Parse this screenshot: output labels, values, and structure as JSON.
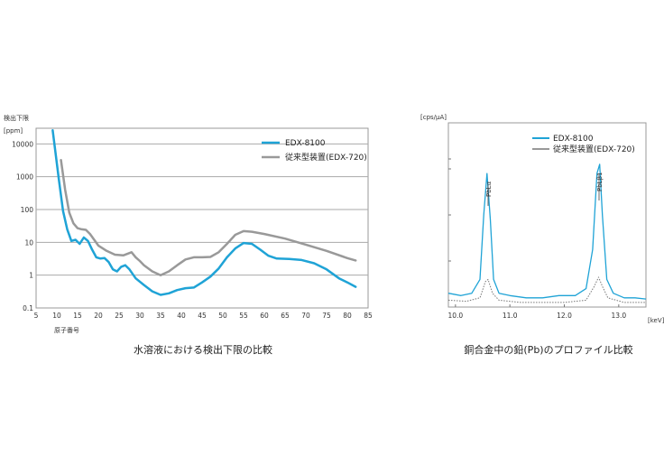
{
  "chart_data": [
    {
      "type": "line",
      "title": "",
      "caption": "水溶液における検出下限の比較",
      "ylabel_line1": "検出下限",
      "ylabel_line2": "[ppm]",
      "xlabel": "原子番号",
      "yscale": "log",
      "xlim": [
        5,
        85
      ],
      "ylim": [
        0.1,
        30000
      ],
      "grid": true,
      "legend_position": "top-right",
      "xticks": [
        "5",
        "10",
        "15",
        "20",
        "25",
        "30",
        "35",
        "40",
        "45",
        "50",
        "55",
        "60",
        "65",
        "70",
        "75",
        "80",
        "85"
      ],
      "yticks": [
        "10000",
        "1000",
        "100",
        "10",
        "1",
        "0.1"
      ],
      "series": [
        {
          "name": "EDX-8100",
          "color": "#1fa3d6",
          "points": [
            [
              9,
              26000
            ],
            [
              10.5,
              800
            ],
            [
              11.5,
              90
            ],
            [
              12.5,
              25
            ],
            [
              13.5,
              11
            ],
            [
              14.5,
              12
            ],
            [
              15.5,
              9
            ],
            [
              16.5,
              14
            ],
            [
              17.5,
              11
            ],
            [
              18.5,
              6
            ],
            [
              19.5,
              3.5
            ],
            [
              20.5,
              3.2
            ],
            [
              21.5,
              3.3
            ],
            [
              22.5,
              2.5
            ],
            [
              23.5,
              1.5
            ],
            [
              24.5,
              1.3
            ],
            [
              25.5,
              1.8
            ],
            [
              26.5,
              2
            ],
            [
              27.5,
              1.5
            ],
            [
              29,
              0.8
            ],
            [
              31,
              0.5
            ],
            [
              33,
              0.32
            ],
            [
              35,
              0.25
            ],
            [
              37,
              0.28
            ],
            [
              39,
              0.35
            ],
            [
              41,
              0.4
            ],
            [
              43,
              0.42
            ],
            [
              45,
              0.6
            ],
            [
              47,
              0.9
            ],
            [
              49,
              1.6
            ],
            [
              51,
              3.5
            ],
            [
              53,
              6.5
            ],
            [
              55,
              9.5
            ],
            [
              57,
              9
            ],
            [
              59,
              6
            ],
            [
              61,
              3.9
            ],
            [
              63,
              3.2
            ],
            [
              66,
              3.1
            ],
            [
              69,
              2.9
            ],
            [
              72,
              2.3
            ],
            [
              75,
              1.5
            ],
            [
              78,
              0.8
            ],
            [
              80,
              0.6
            ],
            [
              82,
              0.44
            ]
          ]
        },
        {
          "name": "従来型装置(EDX-720)",
          "color": "#999999",
          "points": [
            [
              11,
              3200
            ],
            [
              12,
              400
            ],
            [
              13,
              80
            ],
            [
              14,
              38
            ],
            [
              15,
              27
            ],
            [
              16,
              25
            ],
            [
              17,
              24
            ],
            [
              18,
              18
            ],
            [
              19,
              12
            ],
            [
              20,
              8
            ],
            [
              22,
              5.5
            ],
            [
              24,
              4.2
            ],
            [
              26,
              4
            ],
            [
              28,
              5
            ],
            [
              29,
              3.5
            ],
            [
              30,
              2.7
            ],
            [
              31,
              2
            ],
            [
              33,
              1.3
            ],
            [
              35,
              1
            ],
            [
              37,
              1.3
            ],
            [
              39,
              2
            ],
            [
              41,
              3
            ],
            [
              43,
              3.5
            ],
            [
              45,
              3.5
            ],
            [
              47,
              3.6
            ],
            [
              49,
              5
            ],
            [
              51,
              9
            ],
            [
              53,
              17
            ],
            [
              55,
              22
            ],
            [
              57,
              21
            ],
            [
              60,
              18
            ],
            [
              65,
              13
            ],
            [
              70,
              8.5
            ],
            [
              75,
              5.5
            ],
            [
              80,
              3.3
            ],
            [
              82,
              2.8
            ]
          ]
        }
      ]
    },
    {
      "type": "line",
      "title": "",
      "caption": "銅合金中の鉛(Pb)のプロファイル比較",
      "ylabel": "[cps/μA]",
      "xlabel": "[keV]",
      "xlim": [
        9.87,
        13.5
      ],
      "xticks": [
        "10.0",
        "11.0",
        "12.0",
        "13.0"
      ],
      "y_ticks_labeled": false,
      "grid": false,
      "legend_position": "top-right",
      "annotations": [
        "PbLα",
        "PbLβ1"
      ],
      "series": [
        {
          "name": "EDX-8100",
          "color": "#1fa3d6",
          "points": [
            [
              9.87,
              0.06
            ],
            [
              10.1,
              0.05
            ],
            [
              10.3,
              0.06
            ],
            [
              10.45,
              0.12
            ],
            [
              10.52,
              0.4
            ],
            [
              10.58,
              0.58
            ],
            [
              10.64,
              0.38
            ],
            [
              10.7,
              0.12
            ],
            [
              10.8,
              0.06
            ],
            [
              11.0,
              0.05
            ],
            [
              11.3,
              0.04
            ],
            [
              11.6,
              0.04
            ],
            [
              11.9,
              0.05
            ],
            [
              12.2,
              0.05
            ],
            [
              12.4,
              0.08
            ],
            [
              12.52,
              0.25
            ],
            [
              12.6,
              0.58
            ],
            [
              12.65,
              0.62
            ],
            [
              12.7,
              0.4
            ],
            [
              12.78,
              0.12
            ],
            [
              12.9,
              0.06
            ],
            [
              13.1,
              0.04
            ],
            [
              13.3,
              0.04
            ],
            [
              13.5,
              0.035
            ]
          ]
        },
        {
          "name": "従来型装置(EDX-720)",
          "color": "#777777",
          "points": [
            [
              9.87,
              0.03
            ],
            [
              10.2,
              0.025
            ],
            [
              10.45,
              0.04
            ],
            [
              10.55,
              0.11
            ],
            [
              10.6,
              0.12
            ],
            [
              10.68,
              0.06
            ],
            [
              10.8,
              0.03
            ],
            [
              11.2,
              0.02
            ],
            [
              11.6,
              0.02
            ],
            [
              12.0,
              0.02
            ],
            [
              12.4,
              0.03
            ],
            [
              12.55,
              0.09
            ],
            [
              12.63,
              0.13
            ],
            [
              12.7,
              0.09
            ],
            [
              12.8,
              0.04
            ],
            [
              13.1,
              0.02
            ],
            [
              13.5,
              0.02
            ]
          ]
        }
      ]
    }
  ]
}
